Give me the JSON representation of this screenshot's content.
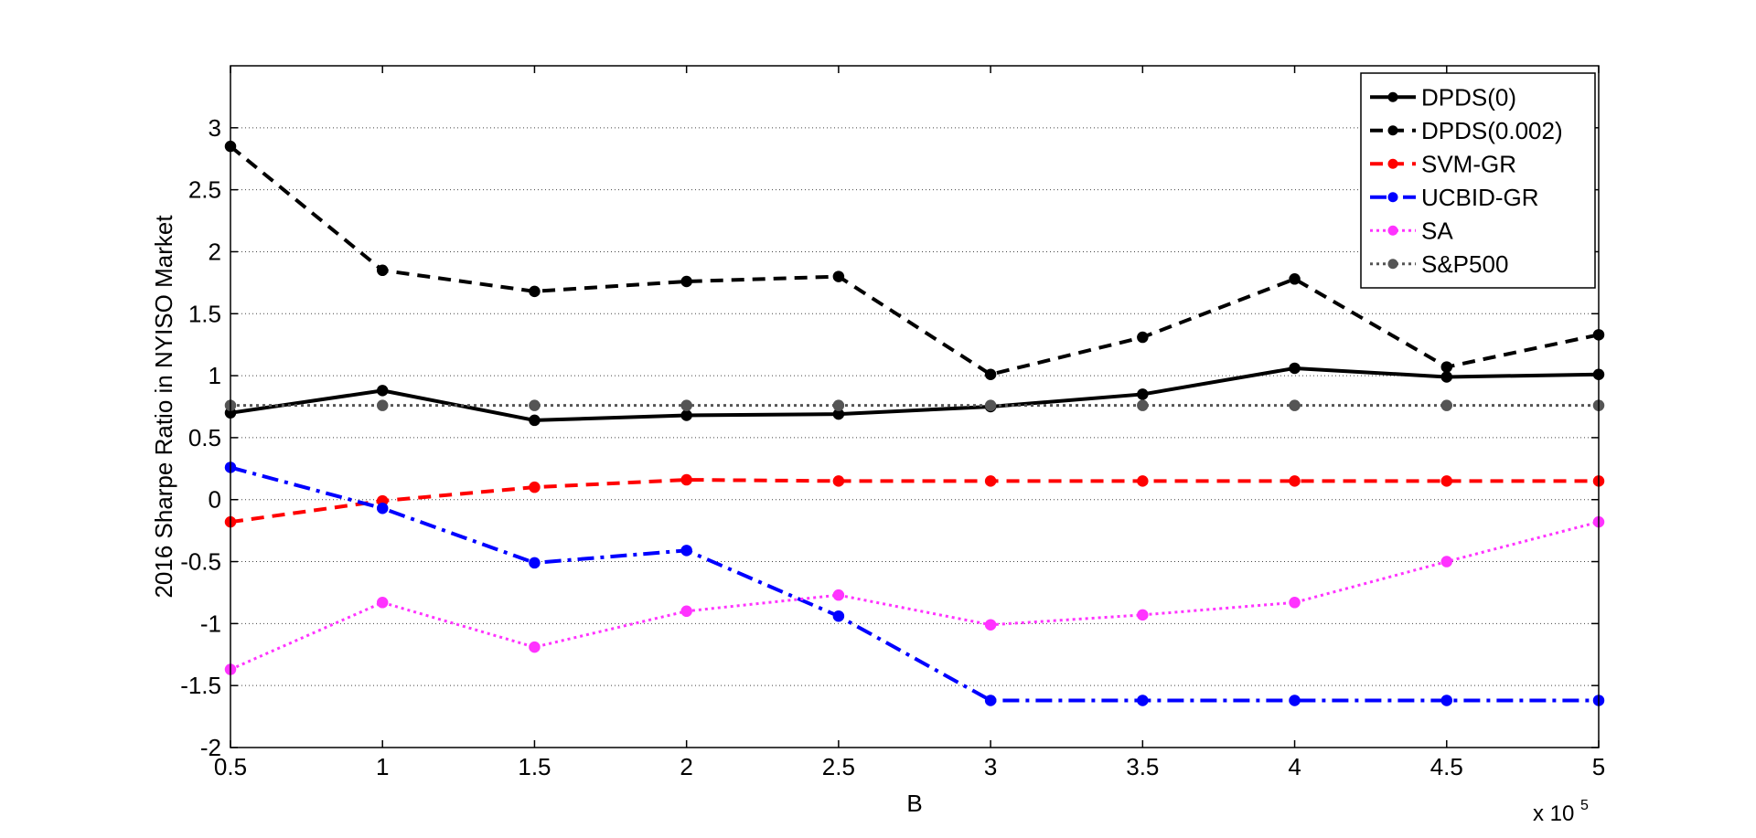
{
  "chart_data": {
    "type": "line",
    "xlabel": "B",
    "ylabel": "2016 Sharpe Ratio in NYISO Market",
    "x_multiplier": "x 10",
    "x_multiplier_exp": "5",
    "x": [
      0.5,
      1,
      1.5,
      2,
      2.5,
      3,
      3.5,
      4,
      4.5,
      5
    ],
    "xlim": [
      0.5,
      5
    ],
    "ylim": [
      -2,
      3.5
    ],
    "xticks": [
      "0.5",
      "1",
      "1.5",
      "2",
      "2.5",
      "3",
      "3.5",
      "4",
      "4.5",
      "5"
    ],
    "yticks": [
      {
        "v": -2,
        "label": "-2"
      },
      {
        "v": -1.5,
        "label": "-1.5"
      },
      {
        "v": -1,
        "label": "-1"
      },
      {
        "v": -0.5,
        "label": "-0.5"
      },
      {
        "v": 0,
        "label": "0"
      },
      {
        "v": 0.5,
        "label": "0.5"
      },
      {
        "v": 1,
        "label": "1"
      },
      {
        "v": 1.5,
        "label": "1.5"
      },
      {
        "v": 2,
        "label": "2"
      },
      {
        "v": 2.5,
        "label": "2.5"
      },
      {
        "v": 3,
        "label": "3"
      }
    ],
    "grid": "horizontal dotted",
    "legend_position": "top-right",
    "series": [
      {
        "name": "DPDS(0)",
        "color": "#000000",
        "dash": "",
        "width": 4,
        "marker": "filled",
        "values": [
          0.7,
          0.88,
          0.64,
          0.68,
          0.69,
          0.75,
          0.85,
          1.06,
          0.99,
          1.01
        ]
      },
      {
        "name": "DPDS(0.002)",
        "color": "#000000",
        "dash": "14,9",
        "width": 4,
        "marker": "filled",
        "values": [
          2.85,
          1.85,
          1.68,
          1.76,
          1.8,
          1.01,
          1.31,
          1.78,
          1.07,
          1.33
        ]
      },
      {
        "name": "SVM-GR",
        "color": "#ff0000",
        "dash": "14,9",
        "width": 4,
        "marker": "filled",
        "values": [
          -0.18,
          -0.01,
          0.1,
          0.16,
          0.15,
          0.15,
          0.15,
          0.15,
          0.15,
          0.15
        ]
      },
      {
        "name": "UCBID-GR",
        "color": "#0000ff",
        "dash": "18,7,4,7",
        "width": 4,
        "marker": "filled",
        "values": [
          0.26,
          -0.07,
          -0.51,
          -0.41,
          -0.94,
          -1.62,
          -1.62,
          -1.62,
          -1.62,
          -1.62
        ]
      },
      {
        "name": "SA",
        "color": "#ff33ff",
        "dash": "3,4",
        "width": 3,
        "marker": "filled",
        "values": [
          -1.37,
          -0.83,
          -1.19,
          -0.9,
          -0.77,
          -1.01,
          -0.93,
          -0.83,
          -0.5,
          -0.18
        ]
      },
      {
        "name": "S&P500",
        "color": "#555555",
        "dash": "3,4",
        "width": 3,
        "marker": "filled",
        "values": [
          0.76,
          0.76,
          0.76,
          0.76,
          0.76,
          0.76,
          0.76,
          0.76,
          0.76,
          0.76
        ]
      }
    ]
  }
}
